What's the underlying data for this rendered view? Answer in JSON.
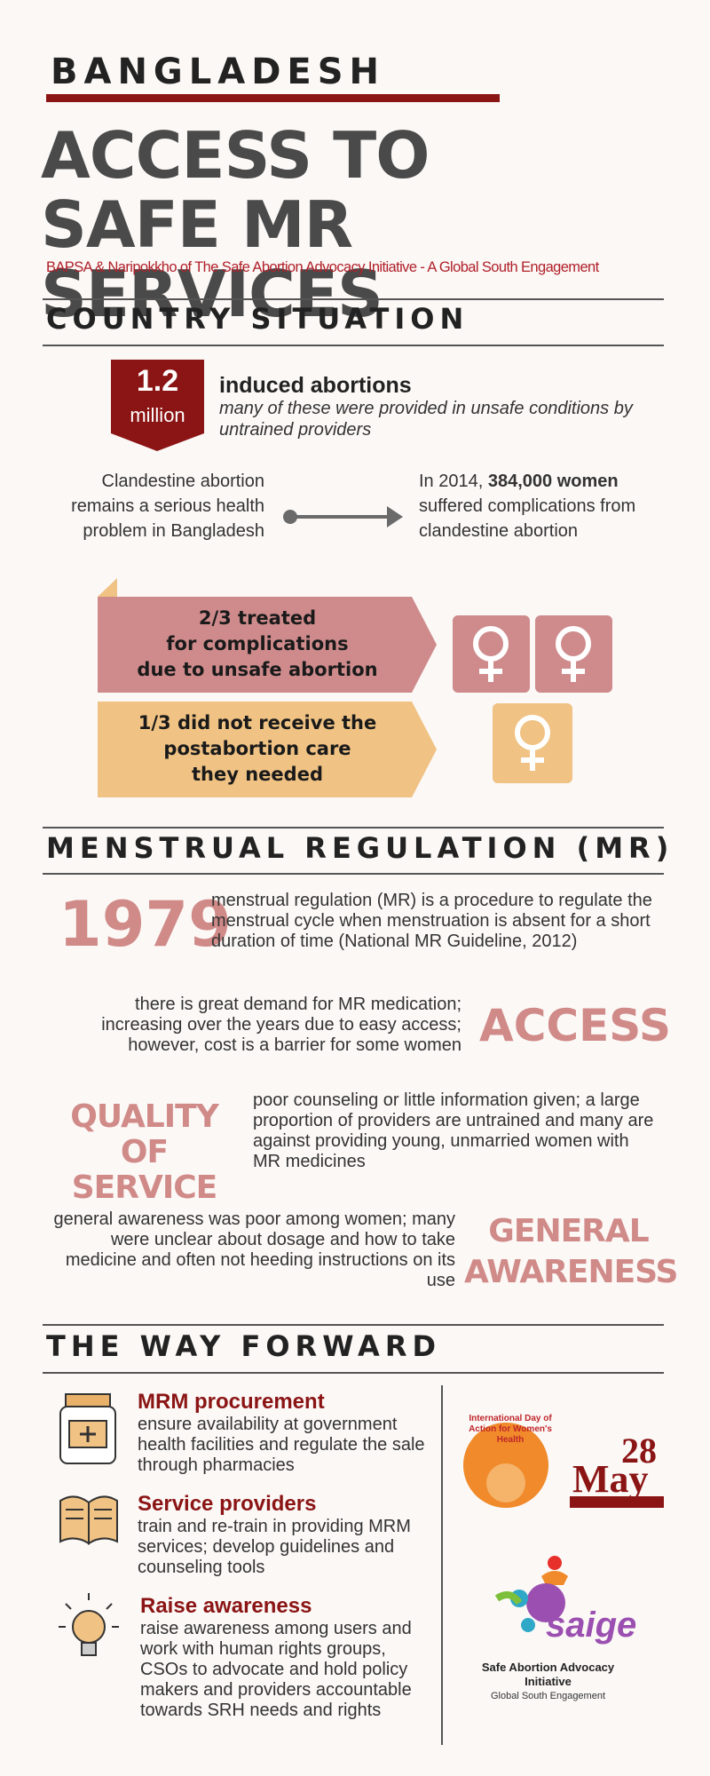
{
  "header": {
    "country": "BANGLADESH",
    "title_lines": [
      "ACCESS TO",
      "SAFE MR SERVICES"
    ],
    "subtitle": "BAPSA & Naripokkho of The Safe Abortion Advocacy Initiative - A Global South Engagement"
  },
  "country_situation": {
    "heading": "COUNTRY SITUATION",
    "stat": {
      "number": "1.2",
      "unit": "million",
      "label": "induced abortions",
      "note": "many of these were provided in unsafe conditions by untrained providers"
    },
    "problem": "Clandestine abortion remains a serious health problem in Bangladesh",
    "complications": {
      "prefix": "In 2014,",
      "highlight": "384,000 women",
      "suffix": "suffered complications from clandestine abortion"
    },
    "treated_lines": [
      "2/3 treated",
      "for complications",
      "due to unsafe abortion"
    ],
    "untreated_lines": [
      "1/3 did not receive the",
      "postabortion care",
      "they needed"
    ]
  },
  "menstrual_regulation": {
    "heading": "MENSTRUAL REGULATION (MR)",
    "year": "1979",
    "year_text": "menstrual regulation (MR) is a procedure to regulate the menstrual cycle when menstruation is absent for a short duration of time (National MR Guideline, 2012)",
    "access": {
      "label": "ACCESS",
      "text": "there is great demand for MR medication; increasing over the years due to easy access; however, cost is a barrier for some women"
    },
    "quality": {
      "label_lines": [
        "QUALITY",
        "OF SERVICE"
      ],
      "text": "poor counseling or little information given; a large proportion of providers are untrained and many are against providing young, unmarried women with MR medicines"
    },
    "awareness": {
      "label_lines": [
        "GENERAL",
        "AWARENESS"
      ],
      "text": "general awareness was poor among women; many were unclear about dosage and how to take medicine and often not heeding instructions on its use"
    }
  },
  "way_forward": {
    "heading": "THE WAY FORWARD",
    "items": [
      {
        "title": "MRM procurement",
        "text": "ensure availability at government health facilities and regulate the sale through pharmacies"
      },
      {
        "title": "Service providers",
        "text": "train and re-train in providing MRM services; develop guidelines and counseling tools"
      },
      {
        "title": "Raise awareness",
        "text": "raise awareness among users and work with human rights groups, CSOs to advocate and hold policy makers and providers accountable towards SRH needs and rights"
      }
    ]
  },
  "logos": {
    "day_of_action": "International Day of Action for Women's Health",
    "day": "28",
    "month": "May",
    "saige": "saige",
    "saige_name": "Safe Abortion Advocacy Initiative",
    "saige_sub": "Global South Engagement"
  }
}
